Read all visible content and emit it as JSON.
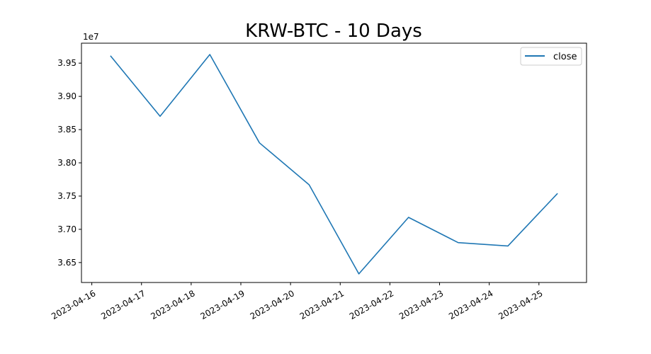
{
  "chart_data": {
    "type": "line",
    "title": "KRW-BTC - 10 Days",
    "xlabel": "",
    "ylabel": "",
    "y_offset_label": "1e7",
    "x_ticks": [
      "2023-04-16",
      "2023-04-17",
      "2023-04-18",
      "2023-04-19",
      "2023-04-20",
      "2023-04-21",
      "2023-04-22",
      "2023-04-23",
      "2023-04-24",
      "2023-04-25"
    ],
    "y_ticks": [
      "3.65",
      "3.70",
      "3.75",
      "3.80",
      "3.85",
      "3.90",
      "3.95"
    ],
    "ylim": [
      36.2,
      39.8
    ],
    "legend_position": "top-right",
    "grid": false,
    "series": [
      {
        "name": "close",
        "color": "#1f77b4",
        "x": [
          "2023-04-16T09:00",
          "2023-04-17T09:00",
          "2023-04-18T09:00",
          "2023-04-19T09:00",
          "2023-04-20T09:00",
          "2023-04-21T09:00",
          "2023-04-22T09:00",
          "2023-04-23T09:00",
          "2023-04-24T09:00",
          "2023-04-25T09:00"
        ],
        "values": [
          39.61,
          38.7,
          39.63,
          38.3,
          37.67,
          36.33,
          37.18,
          36.8,
          36.75,
          37.54
        ]
      }
    ]
  }
}
